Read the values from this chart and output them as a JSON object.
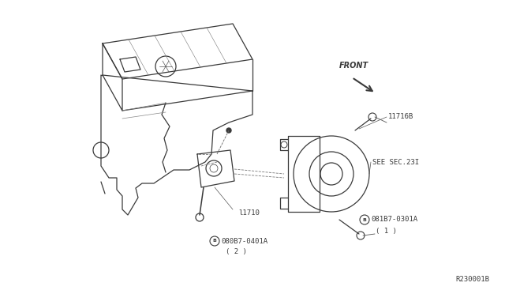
{
  "bg_color": "#ffffff",
  "line_color": "#3a3a3a",
  "fig_width": 6.4,
  "fig_height": 3.72,
  "dpi": 100,
  "diagram_ref": "R230001B",
  "front_label": "FRONT",
  "label_11716B": "11716B",
  "label_seesec": "SEE SEC.23I",
  "label_bolt1": "081B7-0301A",
  "label_bolt1_num": "( 1 )",
  "label_l1710": "l1710",
  "label_bolt2": "080B7-0401A",
  "label_bolt2_num": "( 2 )"
}
